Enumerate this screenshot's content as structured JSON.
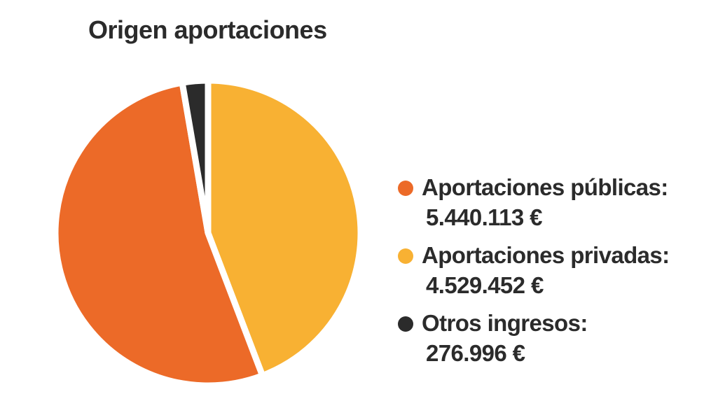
{
  "chart_data": {
    "type": "pie",
    "title": "Origen aportaciones",
    "slices": [
      {
        "name": "Aportaciones públicas:",
        "label": "5.440.113 €",
        "value": 5440113,
        "color": "#ec6a28"
      },
      {
        "name": "Aportaciones privadas:",
        "label": "4.529.452 €",
        "value": 4529452,
        "color": "#f8b133"
      },
      {
        "name": "Otros ingresos:",
        "label": "276.996 €",
        "value": 276996,
        "color": "#2b2b2b"
      }
    ],
    "legend_position": "right"
  }
}
